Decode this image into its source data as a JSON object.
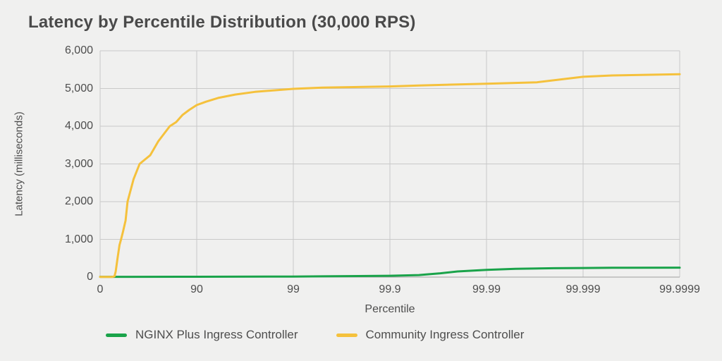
{
  "page": {
    "background": "#f0f0ef"
  },
  "chart_data": {
    "type": "line",
    "title": "Latency by Percentile Distribution (30,000 RPS)",
    "xlabel": "Percentile",
    "ylabel": "Latency (milliseconds)",
    "x_scale": "hdr-percentile (x = log10(100/(100-p)), 6 decades)",
    "x_ticks": [
      "0",
      "90",
      "99",
      "99.9",
      "99.99",
      "99.999",
      "99.9999"
    ],
    "y_ticks": [
      "0",
      "1,000",
      "2,000",
      "3,000",
      "4,000",
      "5,000",
      "6,000"
    ],
    "ylim": [
      0,
      6000
    ],
    "grid": true,
    "legend_position": "bottom-left",
    "colors": {
      "grid": "#c9c9c9",
      "axis": "#9e9e9e",
      "text": "#4d4d4d"
    },
    "series": [
      {
        "name": "NGINX Plus Ingress Controller",
        "color": "#1aa34a",
        "points": [
          [
            0,
            7
          ],
          [
            50,
            8
          ],
          [
            90,
            10
          ],
          [
            99,
            15
          ],
          [
            99.5,
            20
          ],
          [
            99.9,
            35
          ],
          [
            99.95,
            55
          ],
          [
            99.96,
            75
          ],
          [
            99.97,
            100
          ],
          [
            99.98,
            150
          ],
          [
            99.99,
            190
          ],
          [
            99.995,
            220
          ],
          [
            99.998,
            235
          ],
          [
            99.999,
            242
          ],
          [
            99.9995,
            247
          ],
          [
            99.9999,
            250
          ]
        ]
      },
      {
        "name": "Community Ingress Controller",
        "color": "#f5c13c",
        "points": [
          [
            0,
            3
          ],
          [
            25,
            6
          ],
          [
            29,
            20
          ],
          [
            31,
            150
          ],
          [
            34,
            500
          ],
          [
            37,
            850
          ],
          [
            39.3,
            1000
          ],
          [
            42,
            1200
          ],
          [
            45.5,
            1500
          ],
          [
            48,
            2000
          ],
          [
            55,
            2600
          ],
          [
            61,
            3000
          ],
          [
            65,
            3100
          ],
          [
            69.7,
            3230
          ],
          [
            75,
            3600
          ],
          [
            81,
            4000
          ],
          [
            83.7,
            4110
          ],
          [
            86,
            4300
          ],
          [
            88,
            4430
          ],
          [
            90,
            4560
          ],
          [
            92,
            4650
          ],
          [
            94,
            4750
          ],
          [
            96,
            4840
          ],
          [
            97.5,
            4910
          ],
          [
            99,
            4990
          ],
          [
            99.5,
            5025
          ],
          [
            99.9,
            5055
          ],
          [
            99.95,
            5080
          ],
          [
            99.99,
            5125
          ],
          [
            99.997,
            5165
          ],
          [
            99.999,
            5310
          ],
          [
            99.9995,
            5345
          ],
          [
            99.9999,
            5380
          ]
        ]
      }
    ]
  }
}
